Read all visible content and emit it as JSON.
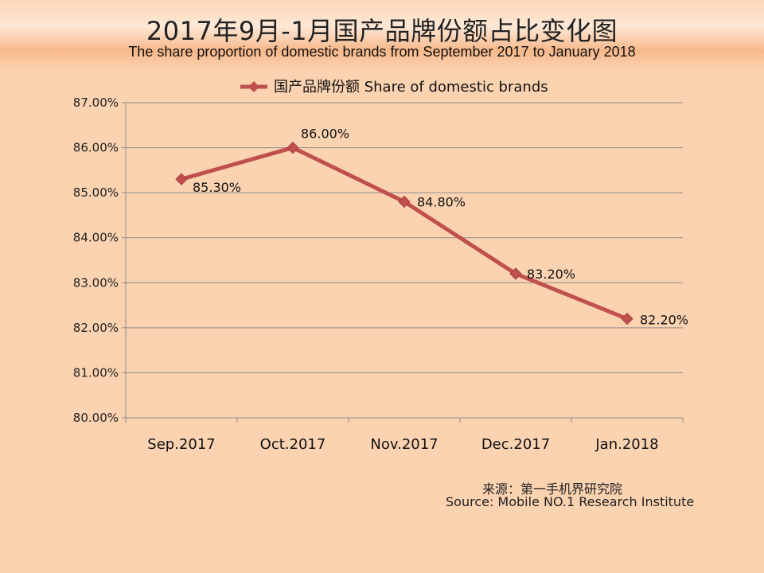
{
  "title": "2017年9月-1月国产品牌份额占比变化图",
  "subtitle": "The share proportion of domestic brands from September 2017 to January 2018",
  "source_cn": "来源：第一手机界研究院",
  "source_en": "Source: Mobile NO.1 Research Institute",
  "colors": {
    "background": "#fbd3b1",
    "series": "#c0504d",
    "grid": "#8c8c8c"
  },
  "chart_data": {
    "type": "line",
    "title": "2017年9月-1月国产品牌份额占比变化图",
    "subtitle": "The share proportion of domestic brands from September 2017 to January 2018",
    "categories": [
      "Sep.2017",
      "Oct.2017",
      "Nov.2017",
      "Dec.2017",
      "Jan.2018"
    ],
    "series": [
      {
        "name": "国产品牌份额  Share of domestic brands",
        "values": [
          85.3,
          86.0,
          84.8,
          83.2,
          82.2
        ],
        "labels": [
          "85.30%",
          "86.00%",
          "84.80%",
          "83.20%",
          "82.20%"
        ],
        "marker": "diamond"
      }
    ],
    "xlabel": "",
    "ylabel": "",
    "ylim": [
      80,
      87
    ],
    "yticks": [
      "80.00%",
      "81.00%",
      "82.00%",
      "83.00%",
      "84.00%",
      "85.00%",
      "86.00%",
      "87.00%"
    ],
    "grid": true,
    "legend": "top-center"
  }
}
